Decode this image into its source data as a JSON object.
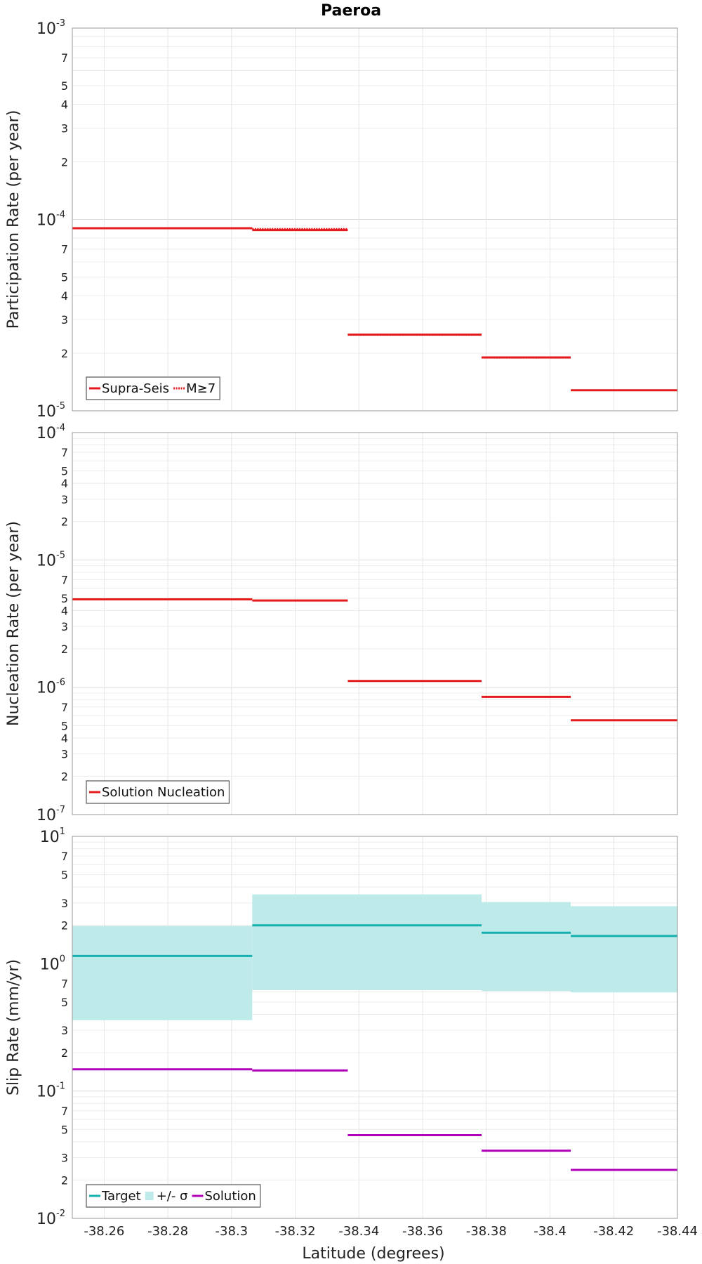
{
  "chart_data": [
    {
      "type": "line",
      "title": "Paeroa",
      "ylabel": "Participation Rate (per year)",
      "yscale": "log",
      "ylim": [
        1e-05,
        0.001
      ],
      "xlim": [
        -38.25,
        -38.44
      ],
      "grid": true,
      "legend_position": "bottom-left",
      "series": [
        {
          "name": "Supra-Seis",
          "style": "solid",
          "color": "#e41a1c",
          "segments": [
            [
              -38.25,
              -38.3065,
              9e-05
            ],
            [
              -38.3065,
              -38.3365,
              8.8e-05
            ],
            [
              -38.3365,
              -38.3785,
              2.5e-05
            ],
            [
              -38.3785,
              -38.4065,
              1.9e-05
            ],
            [
              -38.4065,
              -38.44,
              1.28e-05
            ]
          ]
        },
        {
          "name": "M≥7",
          "style": "dotted",
          "color": "#e41a1c",
          "segments": [
            [
              -38.3065,
              -38.3365,
              8.9e-05
            ],
            [
              -38.3365,
              -38.3785,
              2.5e-05
            ],
            [
              -38.3785,
              -38.4065,
              1.9e-05
            ]
          ]
        }
      ]
    },
    {
      "type": "line",
      "ylabel": "Nucleation Rate (per year)",
      "yscale": "log",
      "ylim": [
        1e-07,
        0.0001
      ],
      "xlim": [
        -38.25,
        -38.44
      ],
      "grid": true,
      "legend_position": "bottom-left",
      "series": [
        {
          "name": "Solution Nucleation",
          "style": "solid",
          "color": "#e41a1c",
          "segments": [
            [
              -38.25,
              -38.3065,
              4.9e-06
            ],
            [
              -38.3065,
              -38.3365,
              4.8e-06
            ],
            [
              -38.3365,
              -38.3785,
              1.12e-06
            ],
            [
              -38.3785,
              -38.4065,
              8.4e-07
            ],
            [
              -38.4065,
              -38.44,
              5.5e-07
            ]
          ]
        }
      ]
    },
    {
      "type": "line",
      "ylabel": "Slip Rate (mm/yr)",
      "xlabel": "Latitude (degrees)",
      "yscale": "log",
      "ylim": [
        0.01,
        10
      ],
      "xlim": [
        -38.25,
        -38.44
      ],
      "grid": true,
      "legend_position": "bottom-left",
      "bands": [
        {
          "name": "+/- σ",
          "color": "#bfeaea",
          "segments": [
            [
              -38.25,
              -38.3065,
              0.36,
              1.98
            ],
            [
              -38.3065,
              -38.3785,
              0.62,
              3.5
            ],
            [
              -38.3785,
              -38.4065,
              0.61,
              3.05
            ],
            [
              -38.4065,
              -38.44,
              0.595,
              2.83
            ]
          ]
        }
      ],
      "series": [
        {
          "name": "Target",
          "style": "solid",
          "color": "#17b0b0",
          "segments": [
            [
              -38.25,
              -38.3065,
              1.15
            ],
            [
              -38.3065,
              -38.3785,
              2.0
            ],
            [
              -38.3785,
              -38.4065,
              1.75
            ],
            [
              -38.4065,
              -38.44,
              1.65
            ]
          ]
        },
        {
          "name": "Solution",
          "style": "solid",
          "color": "#b000b8",
          "segments": [
            [
              -38.25,
              -38.3065,
              0.148
            ],
            [
              -38.3065,
              -38.3365,
              0.145
            ],
            [
              -38.3365,
              -38.3785,
              0.045
            ],
            [
              -38.3785,
              -38.4065,
              0.034
            ],
            [
              -38.4065,
              -38.44,
              0.024
            ]
          ]
        }
      ]
    }
  ],
  "x_ticks": [
    "-38.26",
    "-38.28",
    "-38.3",
    "-38.32",
    "-38.34",
    "-38.36",
    "-38.38",
    "-38.4",
    "-38.42",
    "-38.44"
  ],
  "x_tick_values": [
    -38.26,
    -38.28,
    -38.3,
    -38.32,
    -38.34,
    -38.36,
    -38.38,
    -38.4,
    -38.42,
    -38.44
  ],
  "y_minor_labels": [
    "2",
    "3",
    "4",
    "5",
    "7"
  ],
  "y_minor_labels_slip": [
    "2",
    "3",
    "5",
    "7"
  ]
}
